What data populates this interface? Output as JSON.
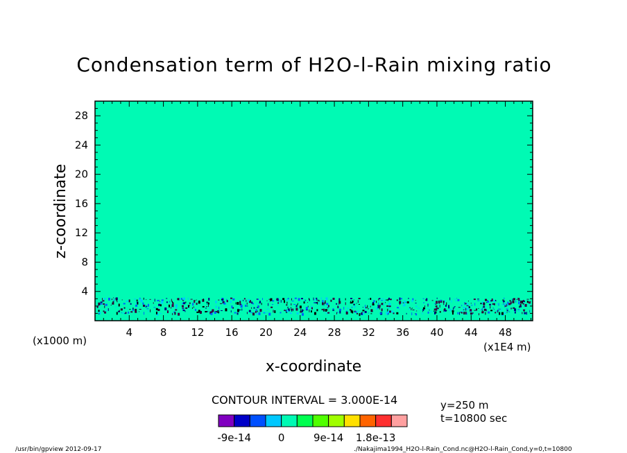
{
  "chart_data": {
    "type": "heatmap",
    "title": "Condensation term of H2O-l-Rain mixing ratio",
    "xlabel": "x-coordinate",
    "ylabel": "z-coordinate",
    "x_unit_left": "(x1000 m)",
    "x_unit_right": "(x1E4 m)",
    "xlim": [
      0,
      51.2
    ],
    "ylim": [
      0,
      30
    ],
    "x_ticks": [
      4,
      8,
      12,
      16,
      20,
      24,
      28,
      32,
      36,
      40,
      44,
      48
    ],
    "x_tick_labels": [
      "4",
      "8",
      "12",
      "16",
      "20",
      "24",
      "28",
      "32",
      "36",
      "40",
      "44",
      "48"
    ],
    "y_ticks": [
      4,
      8,
      12,
      16,
      20,
      24,
      28
    ],
    "y_tick_labels": [
      "4",
      "8",
      "12",
      "16",
      "20",
      "24",
      "28"
    ],
    "background_value_color": "#00fab4",
    "note": "",
    "contour_interval_text": "CONTOUR INTERVAL = 3.000E-14",
    "colorbar": {
      "colors": [
        "#8000c0",
        "#0000c8",
        "#0050ff",
        "#00c8ff",
        "#00fab4",
        "#00ff50",
        "#50ff00",
        "#a0ff00",
        "#ffe000",
        "#ff6400",
        "#ff3030",
        "#ffa0a0"
      ],
      "labels": [
        "-9e-14",
        "0",
        "9e-14",
        "1.8e-13"
      ]
    },
    "info": [
      "y=250 m",
      "t=10800 sec"
    ]
  },
  "footer": {
    "left": "/usr/bin/gpview  2012-09-17",
    "right": "./Nakajima1994_H2O-l-Rain_Cond.nc@H2O-l-Rain_Cond,y=0,t=10800"
  }
}
